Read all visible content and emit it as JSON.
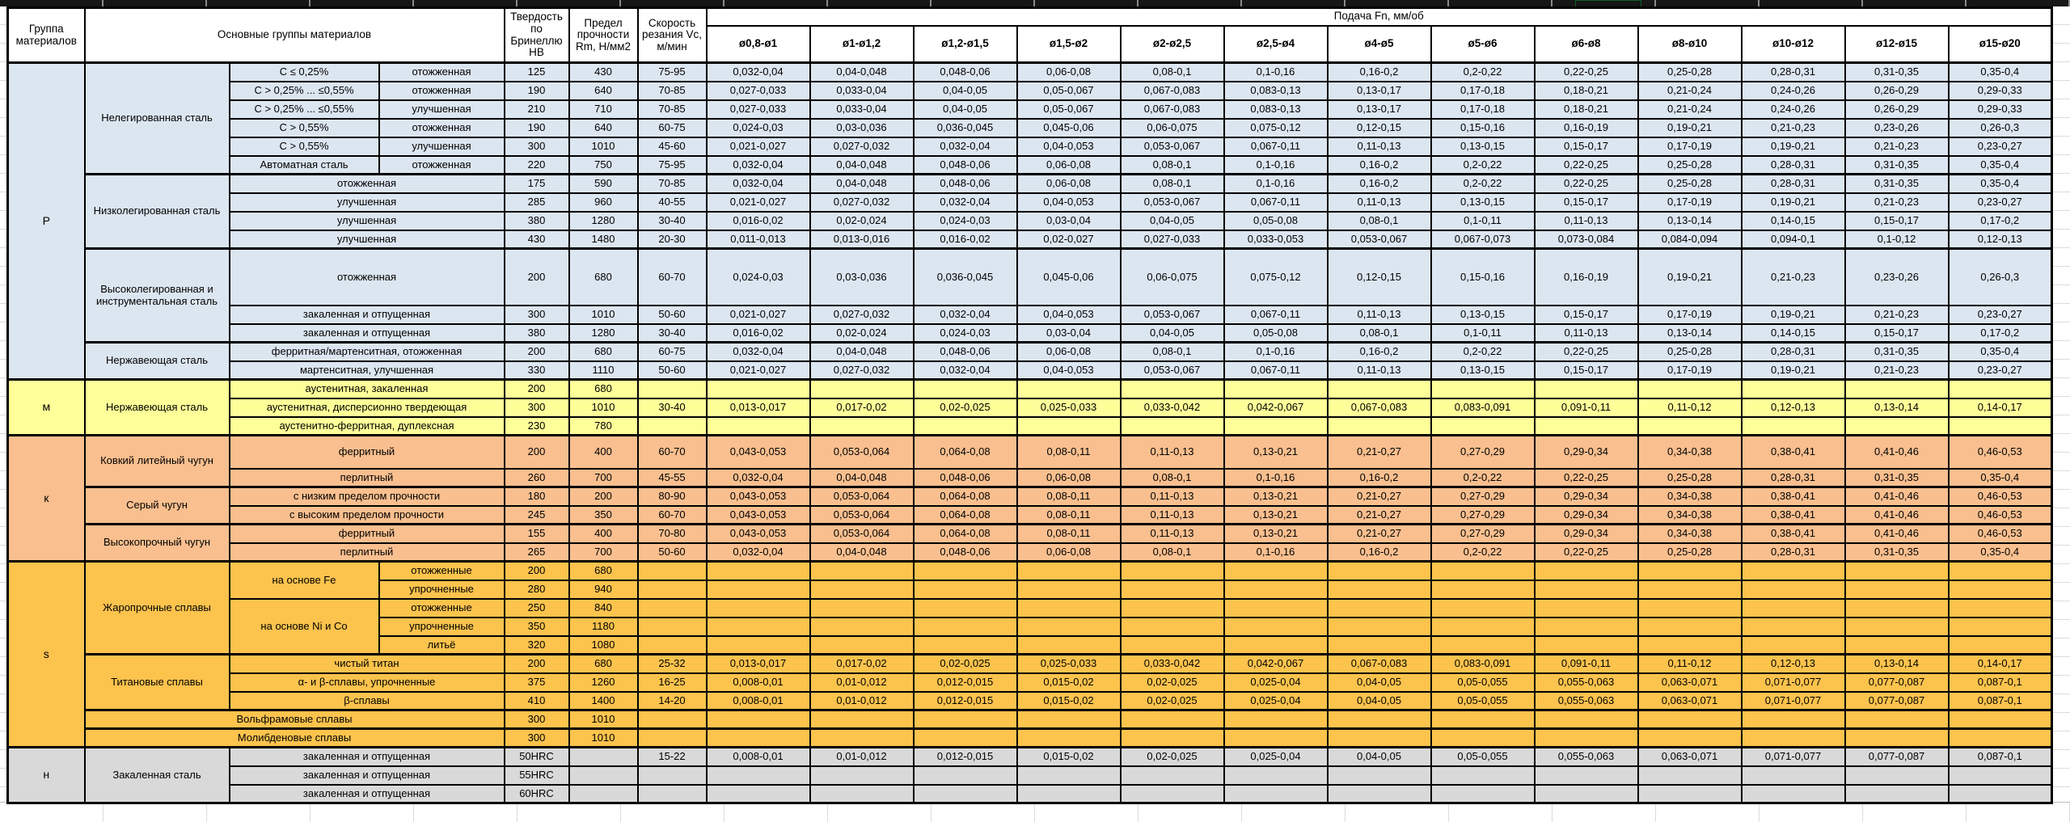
{
  "selection_color": "#21a366",
  "header": {
    "col_group": "Группа материалов",
    "col_materials": "Основные группы материалов",
    "col_hb": "Твердость по Бринеллю HB",
    "col_rm": "Предел прочности Rm, Н/мм2",
    "col_vc": "Скорость резания Vc, м/мин",
    "feed_title": "Подача Fn, мм/об",
    "feed_cols": [
      "ø0,8-ø1",
      "ø1-ø1,2",
      "ø1,2-ø1,5",
      "ø1,5-ø2",
      "ø2-ø2,5",
      "ø2,5-ø4",
      "ø4-ø5",
      "ø5-ø6",
      "ø6-ø8",
      "ø8-ø10",
      "ø10-ø12",
      "ø12-ø15",
      "ø15-ø20"
    ]
  },
  "sections": [
    {
      "group": "P",
      "color": "#dce6f1",
      "rows": [
        {
          "c2": {
            "t": "Нелегированная сталь",
            "rs": 6
          },
          "c3": {
            "t": "C ≤ 0,25%"
          },
          "c4": {
            "t": "отожженная"
          },
          "hb": "125",
          "rm": "430",
          "vc": "75-95",
          "feeds": [
            "0,032-0,04",
            "0,04-0,048",
            "0,048-0,06",
            "0,06-0,08",
            "0,08-0,1",
            "0,1-0,16",
            "0,16-0,2",
            "0,2-0,22",
            "0,22-0,25",
            "0,25-0,28",
            "0,28-0,31",
            "0,31-0,35",
            "0,35-0,4"
          ]
        },
        {
          "c3": {
            "t": "C > 0,25% ... ≤0,55%"
          },
          "c4": {
            "t": "отожженная"
          },
          "hb": "190",
          "rm": "640",
          "vc": "70-85",
          "feeds": [
            "0,027-0,033",
            "0,033-0,04",
            "0,04-0,05",
            "0,05-0,067",
            "0,067-0,083",
            "0,083-0,13",
            "0,13-0,17",
            "0,17-0,18",
            "0,18-0,21",
            "0,21-0,24",
            "0,24-0,26",
            "0,26-0,29",
            "0,29-0,33"
          ]
        },
        {
          "c3": {
            "t": "C > 0,25% ... ≤0,55%"
          },
          "c4": {
            "t": "улучшенная"
          },
          "hb": "210",
          "rm": "710",
          "vc": "70-85",
          "feeds": [
            "0,027-0,033",
            "0,033-0,04",
            "0,04-0,05",
            "0,05-0,067",
            "0,067-0,083",
            "0,083-0,13",
            "0,13-0,17",
            "0,17-0,18",
            "0,18-0,21",
            "0,21-0,24",
            "0,24-0,26",
            "0,26-0,29",
            "0,29-0,33"
          ]
        },
        {
          "c3": {
            "t": "C > 0,55%"
          },
          "c4": {
            "t": "отожженная"
          },
          "hb": "190",
          "rm": "640",
          "vc": "60-75",
          "feeds": [
            "0,024-0,03",
            "0,03-0,036",
            "0,036-0,045",
            "0,045-0,06",
            "0,06-0,075",
            "0,075-0,12",
            "0,12-0,15",
            "0,15-0,16",
            "0,16-0,19",
            "0,19-0,21",
            "0,21-0,23",
            "0,23-0,26",
            "0,26-0,3"
          ]
        },
        {
          "c3": {
            "t": "C > 0,55%"
          },
          "c4": {
            "t": "улучшенная"
          },
          "hb": "300",
          "rm": "1010",
          "vc": "45-60",
          "feeds": [
            "0,021-0,027",
            "0,027-0,032",
            "0,032-0,04",
            "0,04-0,053",
            "0,053-0,067",
            "0,067-0,11",
            "0,11-0,13",
            "0,13-0,15",
            "0,15-0,17",
            "0,17-0,19",
            "0,19-0,21",
            "0,21-0,23",
            "0,23-0,27"
          ]
        },
        {
          "c3": {
            "t": "Автоматная сталь"
          },
          "c4": {
            "t": "отожженная"
          },
          "hb": "220",
          "rm": "750",
          "vc": "75-95",
          "feeds": [
            "0,032-0,04",
            "0,04-0,048",
            "0,048-0,06",
            "0,06-0,08",
            "0,08-0,1",
            "0,1-0,16",
            "0,16-0,2",
            "0,2-0,22",
            "0,22-0,25",
            "0,25-0,28",
            "0,28-0,31",
            "0,31-0,35",
            "0,35-0,4"
          ]
        },
        {
          "thick": true,
          "c2": {
            "t": "Низколегированная сталь",
            "rs": 4
          },
          "c3": {
            "t": "отожженная",
            "cs": 2
          },
          "hb": "175",
          "rm": "590",
          "vc": "70-85",
          "feeds": [
            "0,032-0,04",
            "0,04-0,048",
            "0,048-0,06",
            "0,06-0,08",
            "0,08-0,1",
            "0,1-0,16",
            "0,16-0,2",
            "0,2-0,22",
            "0,22-0,25",
            "0,25-0,28",
            "0,28-0,31",
            "0,31-0,35",
            "0,35-0,4"
          ]
        },
        {
          "c3": {
            "t": "улучшенная",
            "cs": 2
          },
          "hb": "285",
          "rm": "960",
          "vc": "40-55",
          "feeds": [
            "0,021-0,027",
            "0,027-0,032",
            "0,032-0,04",
            "0,04-0,053",
            "0,053-0,067",
            "0,067-0,11",
            "0,11-0,13",
            "0,13-0,15",
            "0,15-0,17",
            "0,17-0,19",
            "0,19-0,21",
            "0,21-0,23",
            "0,23-0,27"
          ]
        },
        {
          "c3": {
            "t": "улучшенная",
            "cs": 2
          },
          "hb": "380",
          "rm": "1280",
          "vc": "30-40",
          "feeds": [
            "0,016-0,02",
            "0,02-0,024",
            "0,024-0,03",
            "0,03-0,04",
            "0,04-0,05",
            "0,05-0,08",
            "0,08-0,1",
            "0,1-0,11",
            "0,11-0,13",
            "0,13-0,14",
            "0,14-0,15",
            "0,15-0,17",
            "0,17-0,2"
          ]
        },
        {
          "c3": {
            "t": "улучшенная",
            "cs": 2
          },
          "hb": "430",
          "rm": "1480",
          "vc": "20-30",
          "feeds": [
            "0,011-0,013",
            "0,013-0,016",
            "0,016-0,02",
            "0,02-0,027",
            "0,027-0,033",
            "0,033-0,053",
            "0,053-0,067",
            "0,067-0,073",
            "0,073-0,084",
            "0,084-0,094",
            "0,094-0,1",
            "0,1-0,12",
            "0,12-0,13"
          ]
        },
        {
          "thick": true,
          "h": 70,
          "c2": {
            "t": "Высоколегированная и инструментальная сталь",
            "rs": 3
          },
          "c3": {
            "t": "отожженная",
            "cs": 2
          },
          "hb": "200",
          "rm": "680",
          "vc": "60-70",
          "feeds": [
            "0,024-0,03",
            "0,03-0,036",
            "0,036-0,045",
            "0,045-0,06",
            "0,06-0,075",
            "0,075-0,12",
            "0,12-0,15",
            "0,15-0,16",
            "0,16-0,19",
            "0,19-0,21",
            "0,21-0,23",
            "0,23-0,26",
            "0,26-0,3"
          ]
        },
        {
          "c3": {
            "t": "закаленная и отпущенная",
            "cs": 2
          },
          "hb": "300",
          "rm": "1010",
          "vc": "50-60",
          "feeds": [
            "0,021-0,027",
            "0,027-0,032",
            "0,032-0,04",
            "0,04-0,053",
            "0,053-0,067",
            "0,067-0,11",
            "0,11-0,13",
            "0,13-0,15",
            "0,15-0,17",
            "0,17-0,19",
            "0,19-0,21",
            "0,21-0,23",
            "0,23-0,27"
          ]
        },
        {
          "c3": {
            "t": "закаленная и отпущенная",
            "cs": 2
          },
          "hb": "380",
          "rm": "1280",
          "vc": "30-40",
          "feeds": [
            "0,016-0,02",
            "0,02-0,024",
            "0,024-0,03",
            "0,03-0,04",
            "0,04-0,05",
            "0,05-0,08",
            "0,08-0,1",
            "0,1-0,11",
            "0,11-0,13",
            "0,13-0,14",
            "0,14-0,15",
            "0,15-0,17",
            "0,17-0,2"
          ]
        },
        {
          "thick": true,
          "c2": {
            "t": "Нержавеющая сталь",
            "rs": 2
          },
          "c3": {
            "t": "ферритная/мартенситная, отожженная",
            "cs": 2
          },
          "hb": "200",
          "rm": "680",
          "vc": "60-75",
          "feeds": [
            "0,032-0,04",
            "0,04-0,048",
            "0,048-0,06",
            "0,06-0,08",
            "0,08-0,1",
            "0,1-0,16",
            "0,16-0,2",
            "0,2-0,22",
            "0,22-0,25",
            "0,25-0,28",
            "0,28-0,31",
            "0,31-0,35",
            "0,35-0,4"
          ]
        },
        {
          "c3": {
            "t": "мартенситная, улучшенная",
            "cs": 2
          },
          "hb": "330",
          "rm": "1110",
          "vc": "50-60",
          "feeds": [
            "0,021-0,027",
            "0,027-0,032",
            "0,032-0,04",
            "0,04-0,053",
            "0,053-0,067",
            "0,067-0,11",
            "0,11-0,13",
            "0,13-0,15",
            "0,15-0,17",
            "0,17-0,19",
            "0,19-0,21",
            "0,21-0,23",
            "0,23-0,27"
          ]
        }
      ]
    },
    {
      "group": "м",
      "color": "#ffff99",
      "rows": [
        {
          "c2": {
            "t": "Нержавеющая сталь",
            "rs": 3
          },
          "c3": {
            "t": "аустенитная, закаленная",
            "cs": 2
          },
          "hb": "200",
          "rm": "680",
          "vc": "",
          "feeds": []
        },
        {
          "c3": {
            "t": "аустенитная, дисперсионно твердеющая",
            "cs": 2
          },
          "hb": "300",
          "rm": "1010",
          "vc": "30-40",
          "feeds": [
            "0,013-0,017",
            "0,017-0,02",
            "0,02-0,025",
            "0,025-0,033",
            "0,033-0,042",
            "0,042-0,067",
            "0,067-0,083",
            "0,083-0,091",
            "0,091-0,11",
            "0,11-0,12",
            "0,12-0,13",
            "0,13-0,14",
            "0,14-0,17"
          ]
        },
        {
          "c3": {
            "t": "аустенитно-ферритная, дуплексная",
            "cs": 2
          },
          "hb": "230",
          "rm": "780",
          "vc": "",
          "feeds": []
        }
      ]
    },
    {
      "group": "к",
      "color": "#fabf8f",
      "rows": [
        {
          "h": 41,
          "c2": {
            "t": "Ковкий литейный чугун",
            "rs": 2
          },
          "c3": {
            "t": "ферритный",
            "cs": 2
          },
          "hb": "200",
          "rm": "400",
          "vc": "60-70",
          "feeds": [
            "0,043-0,053",
            "0,053-0,064",
            "0,064-0,08",
            "0,08-0,11",
            "0,11-0,13",
            "0,13-0,21",
            "0,21-0,27",
            "0,27-0,29",
            "0,29-0,34",
            "0,34-0,38",
            "0,38-0,41",
            "0,41-0,46",
            "0,46-0,53"
          ]
        },
        {
          "c3": {
            "t": "перлитный",
            "cs": 2
          },
          "hb": "260",
          "rm": "700",
          "vc": "45-55",
          "feeds": [
            "0,032-0,04",
            "0,04-0,048",
            "0,048-0,06",
            "0,06-0,08",
            "0,08-0,1",
            "0,1-0,16",
            "0,16-0,2",
            "0,2-0,22",
            "0,22-0,25",
            "0,25-0,28",
            "0,28-0,31",
            "0,31-0,35",
            "0,35-0,4"
          ]
        },
        {
          "thick": true,
          "c2": {
            "t": "Серый чугун",
            "rs": 2
          },
          "c3": {
            "t": "с низким пределом прочности",
            "cs": 2
          },
          "hb": "180",
          "rm": "200",
          "vc": "80-90",
          "feeds": [
            "0,043-0,053",
            "0,053-0,064",
            "0,064-0,08",
            "0,08-0,11",
            "0,11-0,13",
            "0,13-0,21",
            "0,21-0,27",
            "0,27-0,29",
            "0,29-0,34",
            "0,34-0,38",
            "0,38-0,41",
            "0,41-0,46",
            "0,46-0,53"
          ]
        },
        {
          "c3": {
            "t": "с высоким пределом прочности",
            "cs": 2
          },
          "hb": "245",
          "rm": "350",
          "vc": "60-70",
          "feeds": [
            "0,043-0,053",
            "0,053-0,064",
            "0,064-0,08",
            "0,08-0,11",
            "0,11-0,13",
            "0,13-0,21",
            "0,21-0,27",
            "0,27-0,29",
            "0,29-0,34",
            "0,34-0,38",
            "0,38-0,41",
            "0,41-0,46",
            "0,46-0,53"
          ]
        },
        {
          "thick": true,
          "c2": {
            "t": "Высокопрочный чугун",
            "rs": 2
          },
          "c3": {
            "t": "ферритный",
            "cs": 2
          },
          "hb": "155",
          "rm": "400",
          "vc": "70-80",
          "feeds": [
            "0,043-0,053",
            "0,053-0,064",
            "0,064-0,08",
            "0,08-0,11",
            "0,11-0,13",
            "0,13-0,21",
            "0,21-0,27",
            "0,27-0,29",
            "0,29-0,34",
            "0,34-0,38",
            "0,38-0,41",
            "0,41-0,46",
            "0,46-0,53"
          ]
        },
        {
          "c3": {
            "t": "перлитный",
            "cs": 2
          },
          "hb": "265",
          "rm": "700",
          "vc": "50-60",
          "feeds": [
            "0,032-0,04",
            "0,04-0,048",
            "0,048-0,06",
            "0,06-0,08",
            "0,08-0,1",
            "0,1-0,16",
            "0,16-0,2",
            "0,2-0,22",
            "0,22-0,25",
            "0,25-0,28",
            "0,28-0,31",
            "0,31-0,35",
            "0,35-0,4"
          ]
        }
      ]
    },
    {
      "group": "s",
      "color": "#fcc34d",
      "rows": [
        {
          "c2": {
            "t": "Жаропрочные сплавы",
            "rs": 5
          },
          "c3": {
            "t": "на основе Fe",
            "rs": 2
          },
          "c4": {
            "t": "отожженные"
          },
          "hb": "200",
          "rm": "680",
          "vc": "",
          "feeds": []
        },
        {
          "c4": {
            "t": "упрочненные"
          },
          "hb": "280",
          "rm": "940",
          "vc": "",
          "feeds": []
        },
        {
          "c3": {
            "t": "на основе Ni и Co",
            "rs": 3
          },
          "c4": {
            "t": "отожженные"
          },
          "hb": "250",
          "rm": "840",
          "vc": "",
          "feeds": []
        },
        {
          "c4": {
            "t": "упрочненные"
          },
          "hb": "350",
          "rm": "1180",
          "vc": "",
          "feeds": []
        },
        {
          "c4": {
            "t": "литьё"
          },
          "hb": "320",
          "rm": "1080",
          "vc": "",
          "feeds": []
        },
        {
          "thick": true,
          "c2": {
            "t": "Титановые сплавы",
            "rs": 3
          },
          "c3": {
            "t": "чистый титан",
            "cs": 2
          },
          "hb": "200",
          "rm": "680",
          "vc": "25-32",
          "feeds": [
            "0,013-0,017",
            "0,017-0,02",
            "0,02-0,025",
            "0,025-0,033",
            "0,033-0,042",
            "0,042-0,067",
            "0,067-0,083",
            "0,083-0,091",
            "0,091-0,11",
            "0,11-0,12",
            "0,12-0,13",
            "0,13-0,14",
            "0,14-0,17"
          ]
        },
        {
          "c3": {
            "t": "α- и β-сплавы, упрочненные",
            "cs": 2
          },
          "hb": "375",
          "rm": "1260",
          "vc": "16-25",
          "feeds": [
            "0,008-0,01",
            "0,01-0,012",
            "0,012-0,015",
            "0,015-0,02",
            "0,02-0,025",
            "0,025-0,04",
            "0,04-0,05",
            "0,05-0,055",
            "0,055-0,063",
            "0,063-0,071",
            "0,071-0,077",
            "0,077-0,087",
            "0,087-0,1"
          ]
        },
        {
          "c3": {
            "t": "β-сплавы",
            "cs": 2
          },
          "hb": "410",
          "rm": "1400",
          "vc": "14-20",
          "feeds": [
            "0,008-0,01",
            "0,01-0,012",
            "0,012-0,015",
            "0,015-0,02",
            "0,02-0,025",
            "0,025-0,04",
            "0,04-0,05",
            "0,05-0,055",
            "0,055-0,063",
            "0,063-0,071",
            "0,071-0,077",
            "0,077-0,087",
            "0,087-0,1"
          ]
        },
        {
          "thick": true,
          "c2": {
            "t": "Вольфрамовые сплавы",
            "cs": 3
          },
          "hb": "300",
          "rm": "1010",
          "vc": "",
          "feeds": []
        },
        {
          "thick": true,
          "c2": {
            "t": "Молибденовые сплавы",
            "cs": 3
          },
          "hb": "300",
          "rm": "1010",
          "vc": "",
          "feeds": []
        }
      ]
    },
    {
      "group": "н",
      "color": "#d9d9d9",
      "rows": [
        {
          "c2": {
            "t": "Закаленная сталь",
            "rs": 3
          },
          "c3": {
            "t": "закаленная и отпущенная",
            "cs": 2
          },
          "hb": "50HRC",
          "rm": "",
          "vc": "15-22",
          "feeds": [
            "0,008-0,01",
            "0,01-0,012",
            "0,012-0,015",
            "0,015-0,02",
            "0,02-0,025",
            "0,025-0,04",
            "0,04-0,05",
            "0,05-0,055",
            "0,055-0,063",
            "0,063-0,071",
            "0,071-0,077",
            "0,077-0,087",
            "0,087-0,1"
          ]
        },
        {
          "c3": {
            "t": "закаленная и отпущенная",
            "cs": 2
          },
          "hb": "55HRC",
          "rm": "",
          "vc": "",
          "feeds": []
        },
        {
          "c3": {
            "t": "закаленная и отпущенная",
            "cs": 2
          },
          "hb": "60HRC",
          "rm": "",
          "vc": "",
          "feeds": []
        }
      ]
    }
  ]
}
